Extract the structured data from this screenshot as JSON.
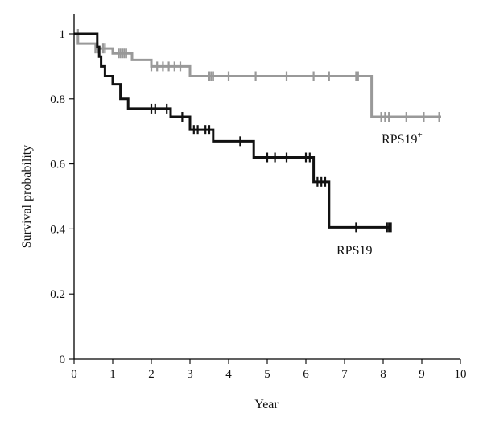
{
  "chart_data": {
    "type": "line",
    "subtype": "kaplan-meier step",
    "xlabel": "Year",
    "ylabel": "Survival probability",
    "xlim": [
      0,
      10
    ],
    "ylim": [
      0,
      1
    ],
    "xticks": [
      "0",
      "1",
      "2",
      "3",
      "4",
      "5",
      "6",
      "7",
      "8",
      "9",
      "10"
    ],
    "yticks": [
      "0",
      "0.2",
      "0.4",
      "0.6",
      "0.8",
      "1"
    ],
    "grid": false,
    "series": [
      {
        "label_main": "RPS19",
        "label_sup": "+",
        "color": "#999999",
        "steps": [
          [
            0,
            1.0
          ],
          [
            0.1,
            0.97
          ],
          [
            0.6,
            0.955
          ],
          [
            1.0,
            0.94
          ],
          [
            1.5,
            0.92
          ],
          [
            2.0,
            0.9
          ],
          [
            3.0,
            0.87
          ],
          [
            7.7,
            0.745
          ],
          [
            9.5,
            0.745
          ]
        ],
        "censored": [
          [
            0.1,
            1.0
          ],
          [
            0.55,
            0.955
          ],
          [
            0.6,
            0.955
          ],
          [
            0.75,
            0.955
          ],
          [
            0.8,
            0.955
          ],
          [
            1.15,
            0.94
          ],
          [
            1.2,
            0.94
          ],
          [
            1.25,
            0.94
          ],
          [
            1.3,
            0.94
          ],
          [
            1.35,
            0.94
          ],
          [
            2.0,
            0.9
          ],
          [
            2.15,
            0.9
          ],
          [
            2.3,
            0.9
          ],
          [
            2.45,
            0.9
          ],
          [
            2.6,
            0.9
          ],
          [
            2.75,
            0.9
          ],
          [
            3.5,
            0.87
          ],
          [
            3.55,
            0.87
          ],
          [
            3.6,
            0.87
          ],
          [
            4.0,
            0.87
          ],
          [
            4.7,
            0.87
          ],
          [
            5.5,
            0.87
          ],
          [
            6.2,
            0.87
          ],
          [
            6.6,
            0.87
          ],
          [
            7.3,
            0.87
          ],
          [
            7.35,
            0.87
          ],
          [
            7.95,
            0.745
          ],
          [
            8.05,
            0.745
          ],
          [
            8.15,
            0.745
          ],
          [
            8.6,
            0.745
          ],
          [
            9.05,
            0.745
          ],
          [
            9.45,
            0.745
          ]
        ]
      },
      {
        "label_main": "RPS19",
        "label_sup": "−",
        "color": "#111111",
        "steps": [
          [
            0,
            1.0
          ],
          [
            0.6,
            0.96
          ],
          [
            0.65,
            0.93
          ],
          [
            0.7,
            0.9
          ],
          [
            0.8,
            0.87
          ],
          [
            1.0,
            0.845
          ],
          [
            1.2,
            0.8
          ],
          [
            1.4,
            0.77
          ],
          [
            2.5,
            0.745
          ],
          [
            3.0,
            0.705
          ],
          [
            3.6,
            0.67
          ],
          [
            4.65,
            0.62
          ],
          [
            6.2,
            0.545
          ],
          [
            6.6,
            0.405
          ],
          [
            8.2,
            0.405
          ]
        ],
        "censored": [
          [
            2.0,
            0.77
          ],
          [
            2.1,
            0.77
          ],
          [
            2.4,
            0.77
          ],
          [
            2.8,
            0.745
          ],
          [
            3.1,
            0.705
          ],
          [
            3.2,
            0.705
          ],
          [
            3.4,
            0.705
          ],
          [
            3.5,
            0.705
          ],
          [
            4.3,
            0.67
          ],
          [
            5.0,
            0.62
          ],
          [
            5.2,
            0.62
          ],
          [
            5.5,
            0.62
          ],
          [
            6.0,
            0.62
          ],
          [
            6.1,
            0.62
          ],
          [
            6.3,
            0.545
          ],
          [
            6.4,
            0.545
          ],
          [
            6.5,
            0.545
          ],
          [
            7.3,
            0.405
          ],
          [
            8.1,
            0.405
          ],
          [
            8.15,
            0.405
          ],
          [
            8.2,
            0.405
          ]
        ]
      }
    ]
  }
}
